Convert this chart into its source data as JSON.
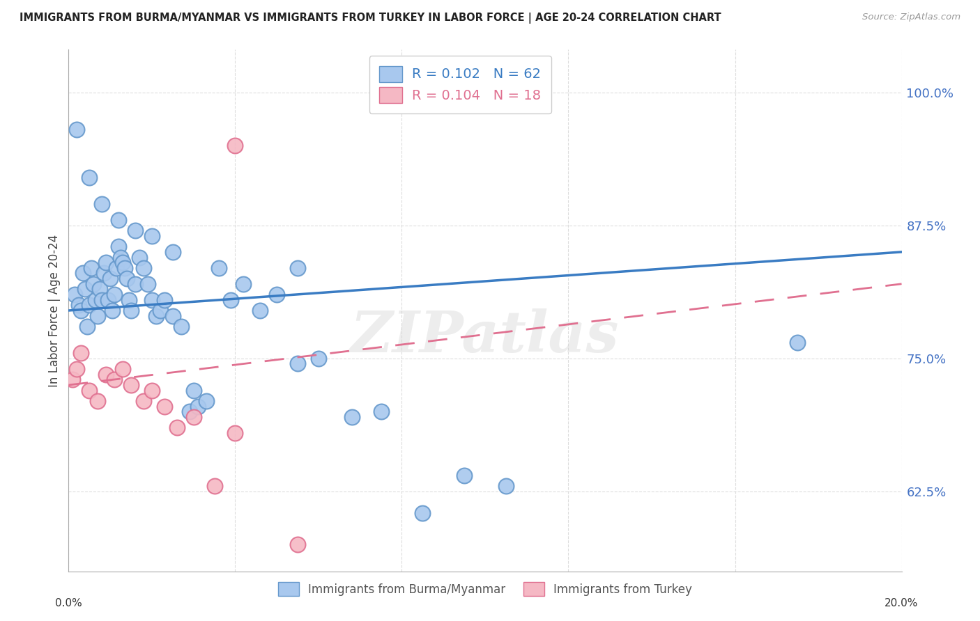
{
  "title": "IMMIGRANTS FROM BURMA/MYANMAR VS IMMIGRANTS FROM TURKEY IN LABOR FORCE | AGE 20-24 CORRELATION CHART",
  "source": "Source: ZipAtlas.com",
  "ylabel": "In Labor Force | Age 20-24",
  "right_yticks": [
    62.5,
    75.0,
    87.5,
    100.0
  ],
  "right_ytick_labels": [
    "62.5%",
    "75.0%",
    "87.5%",
    "100.0%"
  ],
  "xlim": [
    0.0,
    20.0
  ],
  "ylim": [
    55.0,
    104.0
  ],
  "blue_R": "0.102",
  "blue_N": "62",
  "pink_R": "0.104",
  "pink_N": "18",
  "legend_label_blue": "Immigrants from Burma/Myanmar",
  "legend_label_pink": "Immigrants from Turkey",
  "blue_color": "#A8C8EE",
  "blue_edge_color": "#6699CC",
  "pink_color": "#F5B8C4",
  "pink_edge_color": "#E07090",
  "trend_blue_color": "#3A7CC3",
  "trend_pink_color": "#E07090",
  "watermark": "ZIPatlas",
  "blue_x": [
    0.15,
    0.25,
    0.3,
    0.35,
    0.4,
    0.45,
    0.5,
    0.55,
    0.6,
    0.65,
    0.7,
    0.75,
    0.8,
    0.85,
    0.9,
    0.95,
    1.0,
    1.05,
    1.1,
    1.15,
    1.2,
    1.25,
    1.3,
    1.35,
    1.4,
    1.45,
    1.5,
    1.6,
    1.7,
    1.8,
    1.9,
    2.0,
    2.1,
    2.2,
    2.3,
    2.5,
    2.7,
    2.9,
    3.1,
    3.3,
    3.6,
    3.9,
    4.2,
    4.6,
    5.0,
    5.5,
    6.0,
    6.8,
    7.5,
    8.5,
    9.5,
    10.5,
    0.2,
    0.5,
    0.8,
    1.2,
    1.6,
    2.0,
    2.5,
    3.0,
    5.5,
    17.5
  ],
  "blue_y": [
    81.0,
    80.0,
    79.5,
    83.0,
    81.5,
    78.0,
    80.0,
    83.5,
    82.0,
    80.5,
    79.0,
    81.5,
    80.5,
    83.0,
    84.0,
    80.5,
    82.5,
    79.5,
    81.0,
    83.5,
    85.5,
    84.5,
    84.0,
    83.5,
    82.5,
    80.5,
    79.5,
    82.0,
    84.5,
    83.5,
    82.0,
    80.5,
    79.0,
    79.5,
    80.5,
    79.0,
    78.0,
    70.0,
    70.5,
    71.0,
    83.5,
    80.5,
    82.0,
    79.5,
    81.0,
    83.5,
    75.0,
    69.5,
    70.0,
    60.5,
    64.0,
    63.0,
    96.5,
    92.0,
    89.5,
    88.0,
    87.0,
    86.5,
    85.0,
    72.0,
    74.5,
    76.5
  ],
  "pink_x": [
    0.1,
    0.2,
    0.3,
    0.5,
    0.7,
    0.9,
    1.1,
    1.3,
    1.5,
    1.8,
    2.0,
    2.3,
    2.6,
    3.0,
    4.0,
    5.5,
    4.0,
    3.5
  ],
  "pink_y": [
    73.0,
    74.0,
    75.5,
    72.0,
    71.0,
    73.5,
    73.0,
    74.0,
    72.5,
    71.0,
    72.0,
    70.5,
    68.5,
    69.5,
    68.0,
    57.5,
    95.0,
    63.0
  ],
  "trend_blue_x0": 0.0,
  "trend_blue_y0": 79.5,
  "trend_blue_x1": 20.0,
  "trend_blue_y1": 85.0,
  "trend_pink_x0": 0.0,
  "trend_pink_y0": 72.5,
  "trend_pink_x1": 20.0,
  "trend_pink_y1": 82.0,
  "grid_color": "#DDDDDD",
  "x_gridlines": [
    0.0,
    4.0,
    8.0,
    12.0,
    16.0,
    20.0
  ]
}
